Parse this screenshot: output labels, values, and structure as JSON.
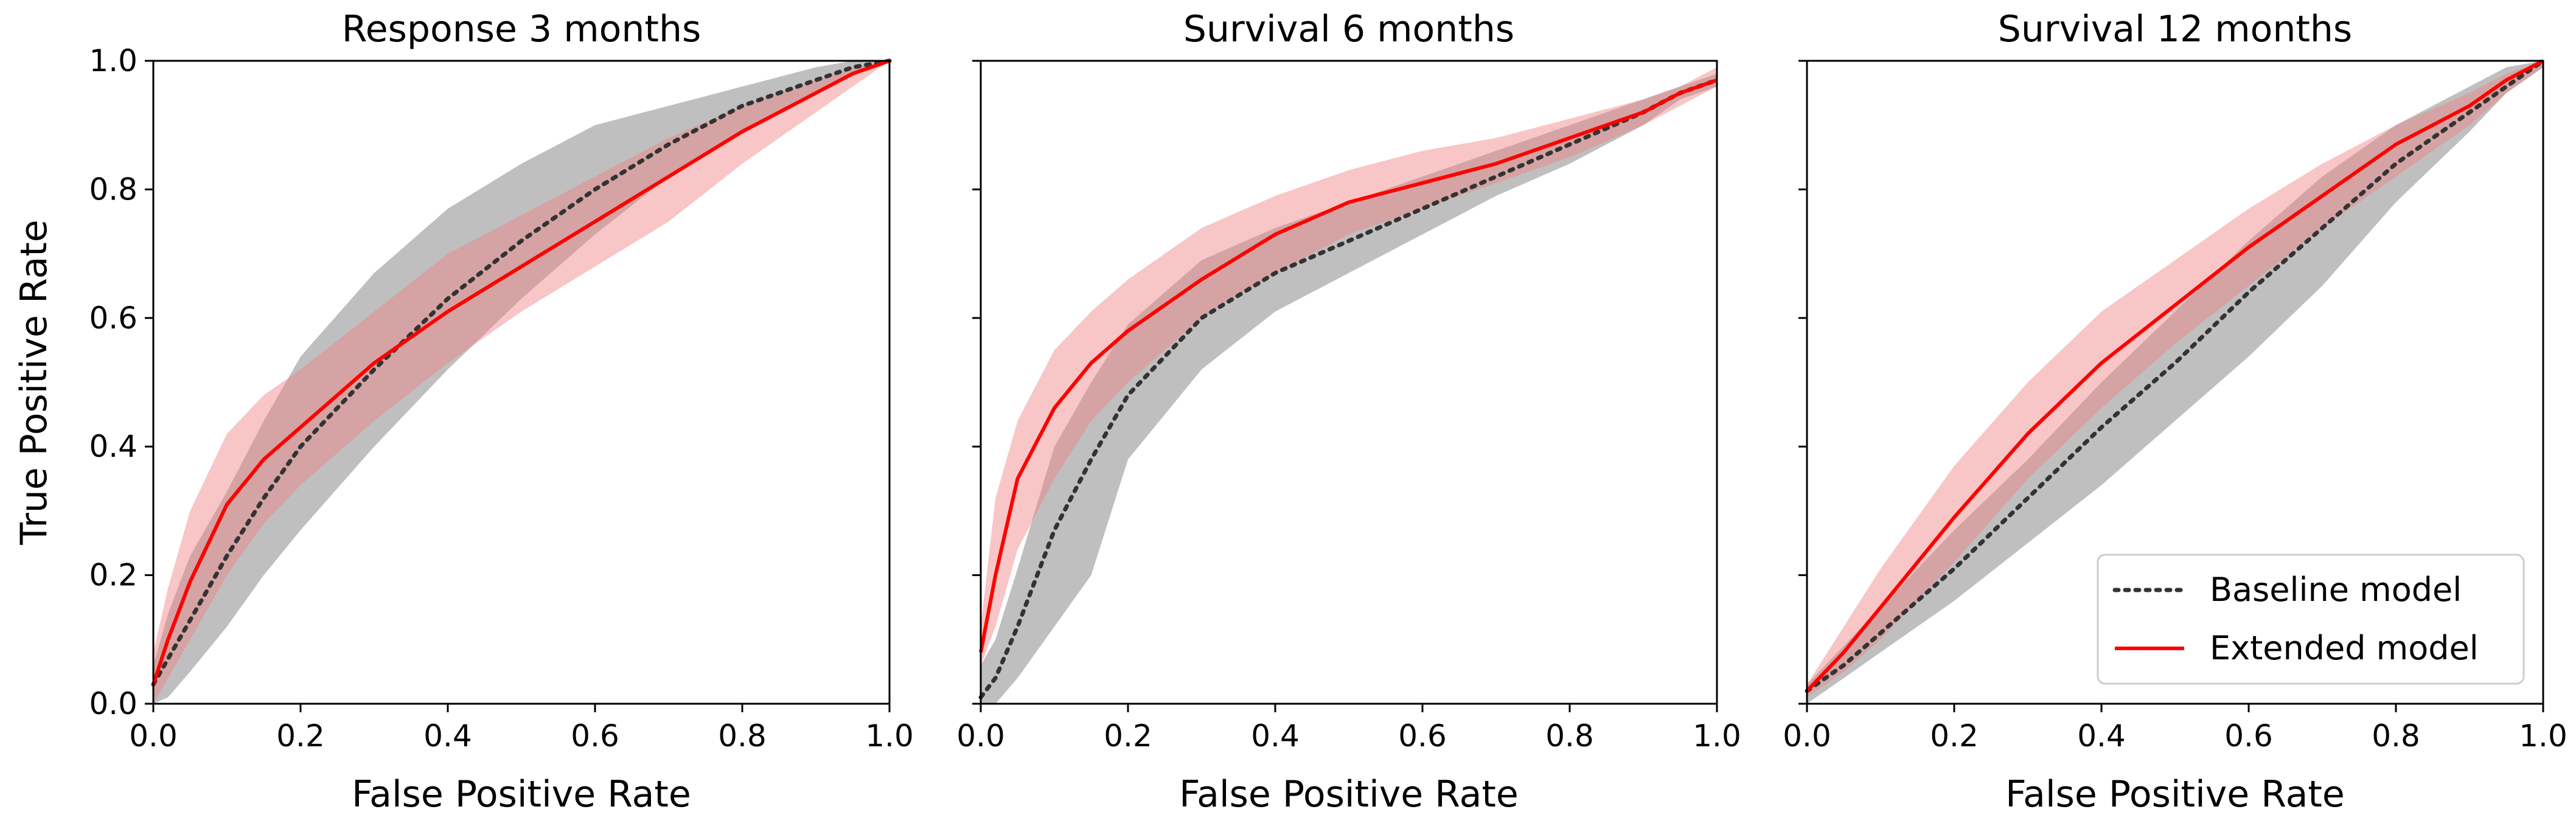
{
  "chart_data": [
    {
      "type": "line",
      "title": "Response 3 months",
      "xlabel": "False Positive Rate",
      "ylabel": "True Positive Rate",
      "xlim": [
        0.0,
        1.0
      ],
      "ylim": [
        0.0,
        1.0
      ],
      "xticks": [
        "0.0",
        "0.2",
        "0.4",
        "0.6",
        "0.8",
        "1.0"
      ],
      "yticks": [
        "0.0",
        "0.2",
        "0.4",
        "0.6",
        "0.8",
        "1.0"
      ],
      "series": [
        {
          "name": "Baseline model",
          "style": "dotted",
          "color": "#333333",
          "band_color": "#808080",
          "x": [
            0,
            0.02,
            0.05,
            0.1,
            0.15,
            0.2,
            0.3,
            0.4,
            0.5,
            0.6,
            0.7,
            0.8,
            0.9,
            0.95,
            1.0
          ],
          "y": [
            0.03,
            0.07,
            0.13,
            0.23,
            0.32,
            0.4,
            0.52,
            0.63,
            0.72,
            0.8,
            0.87,
            0.93,
            0.97,
            0.99,
            1.0
          ],
          "lower": [
            0.0,
            0.01,
            0.05,
            0.12,
            0.2,
            0.27,
            0.4,
            0.52,
            0.63,
            0.73,
            0.82,
            0.89,
            0.95,
            0.98,
            1.0
          ],
          "upper": [
            0.06,
            0.14,
            0.23,
            0.33,
            0.44,
            0.54,
            0.67,
            0.77,
            0.84,
            0.9,
            0.93,
            0.96,
            0.99,
            1.0,
            1.0
          ]
        },
        {
          "name": "Extended model",
          "style": "solid",
          "color": "#ff0000",
          "band_color": "#f08080",
          "x": [
            0,
            0.02,
            0.05,
            0.1,
            0.15,
            0.2,
            0.3,
            0.4,
            0.5,
            0.6,
            0.7,
            0.8,
            0.9,
            0.95,
            1.0
          ],
          "y": [
            0.03,
            0.1,
            0.19,
            0.31,
            0.38,
            0.43,
            0.53,
            0.61,
            0.68,
            0.75,
            0.82,
            0.89,
            0.95,
            0.98,
            1.0
          ],
          "lower": [
            0.0,
            0.04,
            0.1,
            0.2,
            0.28,
            0.34,
            0.44,
            0.53,
            0.61,
            0.68,
            0.75,
            0.84,
            0.92,
            0.96,
            1.0
          ],
          "upper": [
            0.08,
            0.18,
            0.3,
            0.42,
            0.48,
            0.52,
            0.61,
            0.7,
            0.76,
            0.82,
            0.88,
            0.93,
            0.97,
            0.99,
            1.0
          ]
        }
      ]
    },
    {
      "type": "line",
      "title": "Survival 6 months",
      "xlabel": "False Positive Rate",
      "xlim": [
        0.0,
        1.0
      ],
      "ylim": [
        0.0,
        1.0
      ],
      "xticks": [
        "0.0",
        "0.2",
        "0.4",
        "0.6",
        "0.8",
        "1.0"
      ],
      "series": [
        {
          "name": "Baseline model",
          "style": "dotted",
          "color": "#333333",
          "band_color": "#808080",
          "x": [
            0,
            0.02,
            0.05,
            0.1,
            0.15,
            0.2,
            0.3,
            0.4,
            0.5,
            0.6,
            0.7,
            0.8,
            0.9,
            0.95,
            1.0
          ],
          "y": [
            0.01,
            0.04,
            0.12,
            0.27,
            0.38,
            0.48,
            0.6,
            0.67,
            0.72,
            0.77,
            0.82,
            0.87,
            0.92,
            0.95,
            0.97
          ],
          "lower": [
            0.0,
            0.0,
            0.04,
            0.12,
            0.2,
            0.38,
            0.52,
            0.61,
            0.67,
            0.73,
            0.79,
            0.84,
            0.9,
            0.94,
            0.96
          ],
          "upper": [
            0.06,
            0.1,
            0.21,
            0.4,
            0.5,
            0.59,
            0.69,
            0.74,
            0.78,
            0.82,
            0.86,
            0.9,
            0.94,
            0.96,
            0.98
          ]
        },
        {
          "name": "Extended model",
          "style": "solid",
          "color": "#ff0000",
          "band_color": "#f08080",
          "x": [
            0,
            0.02,
            0.05,
            0.1,
            0.15,
            0.2,
            0.3,
            0.4,
            0.5,
            0.6,
            0.7,
            0.8,
            0.9,
            0.95,
            1.0
          ],
          "y": [
            0.08,
            0.2,
            0.35,
            0.46,
            0.53,
            0.58,
            0.66,
            0.73,
            0.78,
            0.81,
            0.84,
            0.88,
            0.92,
            0.95,
            0.97
          ],
          "lower": [
            0.06,
            0.12,
            0.24,
            0.35,
            0.44,
            0.5,
            0.6,
            0.67,
            0.73,
            0.77,
            0.81,
            0.85,
            0.9,
            0.93,
            0.96
          ],
          "upper": [
            0.12,
            0.32,
            0.44,
            0.55,
            0.61,
            0.66,
            0.74,
            0.79,
            0.83,
            0.86,
            0.88,
            0.91,
            0.94,
            0.96,
            0.99
          ]
        }
      ]
    },
    {
      "type": "line",
      "title": "Survival 12 months",
      "xlabel": "False Positive Rate",
      "xlim": [
        0.0,
        1.0
      ],
      "ylim": [
        0.0,
        1.0
      ],
      "xticks": [
        "0.0",
        "0.2",
        "0.4",
        "0.6",
        "0.8",
        "1.0"
      ],
      "series": [
        {
          "name": "Baseline model",
          "style": "dotted",
          "color": "#333333",
          "band_color": "#808080",
          "x": [
            0,
            0.05,
            0.1,
            0.2,
            0.3,
            0.4,
            0.5,
            0.6,
            0.7,
            0.8,
            0.9,
            0.95,
            1.0
          ],
          "y": [
            0.02,
            0.06,
            0.11,
            0.21,
            0.32,
            0.43,
            0.53,
            0.64,
            0.74,
            0.84,
            0.92,
            0.96,
            1.0
          ],
          "lower": [
            0.0,
            0.04,
            0.08,
            0.16,
            0.25,
            0.34,
            0.44,
            0.54,
            0.65,
            0.78,
            0.89,
            0.95,
            0.99
          ],
          "upper": [
            0.03,
            0.09,
            0.15,
            0.27,
            0.38,
            0.5,
            0.61,
            0.72,
            0.82,
            0.9,
            0.96,
            0.99,
            1.0
          ]
        },
        {
          "name": "Extended model",
          "style": "solid",
          "color": "#ff0000",
          "band_color": "#f08080",
          "x": [
            0,
            0.05,
            0.1,
            0.2,
            0.3,
            0.4,
            0.5,
            0.6,
            0.7,
            0.8,
            0.9,
            0.95,
            1.0
          ],
          "y": [
            0.02,
            0.08,
            0.15,
            0.29,
            0.42,
            0.53,
            0.62,
            0.71,
            0.79,
            0.87,
            0.93,
            0.97,
            1.0
          ],
          "lower": [
            0.01,
            0.05,
            0.1,
            0.22,
            0.35,
            0.46,
            0.56,
            0.65,
            0.74,
            0.82,
            0.9,
            0.95,
            0.99
          ],
          "upper": [
            0.03,
            0.12,
            0.21,
            0.37,
            0.5,
            0.61,
            0.69,
            0.77,
            0.84,
            0.9,
            0.95,
            0.98,
            1.0
          ]
        }
      ]
    }
  ],
  "legend": {
    "placement": "lower-right of third panel",
    "items": [
      {
        "label": "Baseline model",
        "style": "dotted",
        "color": "#333333"
      },
      {
        "label": "Extended model",
        "style": "solid",
        "color": "#ff0000"
      }
    ]
  },
  "palette": {
    "background": "#ffffff",
    "axes": "#000000",
    "gray_band_alpha": 0.5,
    "red_band_alpha": 0.45
  }
}
